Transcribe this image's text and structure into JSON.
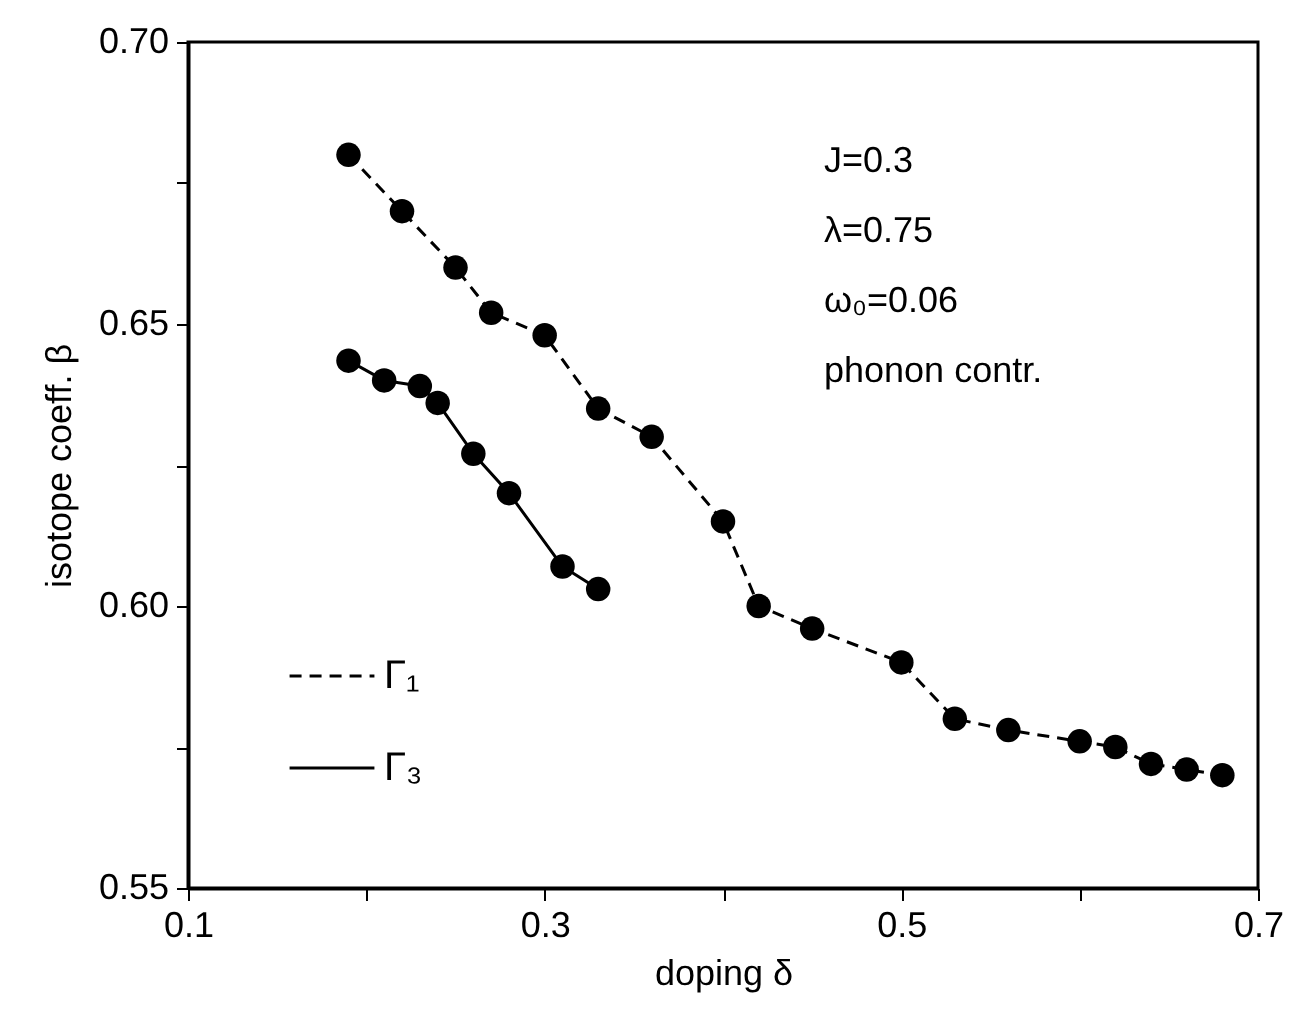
{
  "chart_data": {
    "type": "line",
    "xlabel": "doping δ",
    "ylabel": "isotope coeff. β",
    "xlim": [
      0.1,
      0.7
    ],
    "ylim": [
      0.55,
      0.7
    ],
    "xticks": [
      0.1,
      {
        "value": 0.2,
        "label": null
      },
      0.3,
      {
        "value": 0.4,
        "label": null
      },
      0.5,
      {
        "value": 0.6,
        "label": null
      },
      0.7
    ],
    "yticks": [
      {
        "value": 0.55,
        "label": "0.55"
      },
      {
        "value": 0.575,
        "label": null
      },
      {
        "value": 0.6,
        "label": "0.60"
      },
      {
        "value": 0.625,
        "label": null
      },
      {
        "value": 0.65,
        "label": "0.65"
      },
      {
        "value": 0.675,
        "label": null
      },
      {
        "value": 0.7,
        "label": "0.70"
      }
    ],
    "marker": "circle",
    "legend": "bottom left",
    "grid": false,
    "annotations": [
      "J=0.3",
      "λ=0.75",
      "ω₀=0.06",
      "phonon contr."
    ],
    "series": [
      {
        "name": "Γ₁",
        "color": "#000000",
        "line_style": "dashed",
        "x": [
          0.19,
          0.22,
          0.25,
          0.27,
          0.3,
          0.33,
          0.36,
          0.4,
          0.42,
          0.45,
          0.5,
          0.53,
          0.56,
          0.6,
          0.62,
          0.64,
          0.66,
          0.68
        ],
        "values": [
          0.68,
          0.67,
          0.66,
          0.652,
          0.648,
          0.635,
          0.63,
          0.615,
          0.6,
          0.596,
          0.59,
          0.58,
          0.578,
          0.576,
          0.575,
          0.572,
          0.571,
          0.57
        ]
      },
      {
        "name": "Γ₃",
        "color": "#000000",
        "line_style": "solid",
        "x": [
          0.19,
          0.21,
          0.23,
          0.24,
          0.26,
          0.28,
          0.31,
          0.33
        ],
        "values": [
          0.6435,
          0.64,
          0.639,
          0.636,
          0.627,
          0.62,
          0.607,
          0.603
        ]
      }
    ]
  }
}
